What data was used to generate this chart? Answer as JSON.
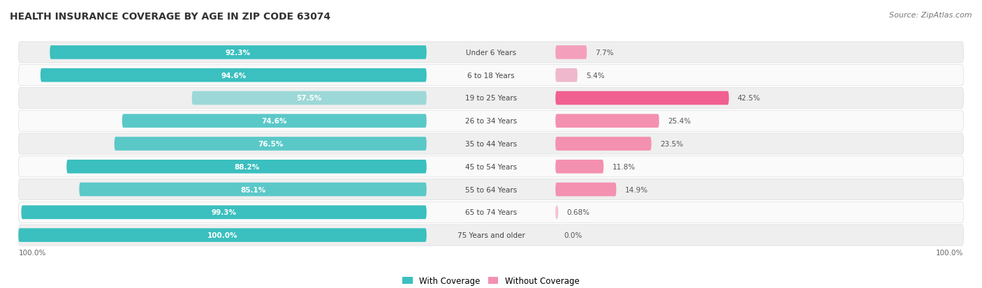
{
  "title": "HEALTH INSURANCE COVERAGE BY AGE IN ZIP CODE 63074",
  "source": "Source: ZipAtlas.com",
  "categories": [
    "Under 6 Years",
    "6 to 18 Years",
    "19 to 25 Years",
    "26 to 34 Years",
    "35 to 44 Years",
    "45 to 54 Years",
    "55 to 64 Years",
    "65 to 74 Years",
    "75 Years and older"
  ],
  "with_coverage": [
    92.3,
    94.6,
    57.5,
    74.6,
    76.5,
    88.2,
    85.1,
    99.3,
    100.0
  ],
  "without_coverage": [
    7.7,
    5.4,
    42.5,
    25.4,
    23.5,
    11.8,
    14.9,
    0.68,
    0.0
  ],
  "with_coverage_labels": [
    "92.3%",
    "94.6%",
    "57.5%",
    "74.6%",
    "76.5%",
    "88.2%",
    "85.1%",
    "99.3%",
    "100.0%"
  ],
  "without_coverage_labels": [
    "7.7%",
    "5.4%",
    "42.5%",
    "25.4%",
    "23.5%",
    "11.8%",
    "14.9%",
    "0.68%",
    "0.0%"
  ],
  "colors_with": [
    "#3BBFBF",
    "#3BBFBF",
    "#9DD8D8",
    "#5BC8C8",
    "#5BC8C8",
    "#3BBFBF",
    "#5BC8C8",
    "#3BBFBF",
    "#3BBFBF"
  ],
  "colors_without": [
    "#F4A0BC",
    "#F0B8CC",
    "#F06090",
    "#F490B0",
    "#F490B0",
    "#F490B0",
    "#F490B0",
    "#F4C0D4",
    "#F4C0D4"
  ],
  "color_with_label_inside": "white",
  "color_with_label_outside": "#555555",
  "color_without_label": "#555555",
  "color_cat_label": "#444444",
  "bg_odd": "#EFEFEF",
  "bg_even": "#FAFAFA",
  "legend_with": "With Coverage",
  "legend_without": "Without Coverage",
  "title_fontsize": 10,
  "source_fontsize": 8,
  "bar_height": 0.6,
  "label_inside_threshold": 15
}
